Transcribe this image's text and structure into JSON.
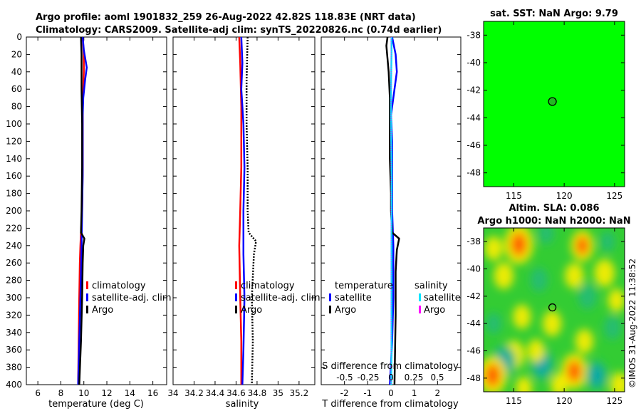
{
  "header": {
    "title_line1": "Argo profile: aoml 1901832_259 26-Aug-2022 42.82S 118.83E (NRT data)",
    "title_line2": "Climatology: CARS2009. Satellite-adj clim: synTS_20220826.nc (0.74d earlier)"
  },
  "watermark": "©IMOS 31-Aug-2022 11:38:52",
  "colors": {
    "climatology": "#ff0000",
    "satellite": "#0000ff",
    "argo": "#000000",
    "salinity_satellite": "#00e5ff",
    "salinity_argo": "#ff00ff",
    "sst_marker": "#22bb22",
    "sst_bg": "#00ff00"
  },
  "chart_data": [
    {
      "id": "temperature",
      "type": "line",
      "xlabel": "temperature (deg C)",
      "xlim": [
        5,
        17.2
      ],
      "xticks": [
        6,
        8,
        10,
        12,
        14,
        16
      ],
      "ylim": [
        0,
        400
      ],
      "yticks": [
        0,
        20,
        40,
        60,
        80,
        100,
        120,
        140,
        160,
        180,
        200,
        220,
        240,
        260,
        280,
        300,
        320,
        340,
        360,
        380,
        400
      ],
      "legend": [
        "climatology",
        "satellite-adj. clim",
        "Argo"
      ],
      "series": [
        {
          "name": "climatology",
          "color": "#ff0000",
          "depth": [
            0,
            20,
            40,
            60,
            80,
            100,
            150,
            200,
            225,
            240,
            260,
            300,
            350,
            400
          ],
          "values": [
            9.9,
            10.0,
            10.0,
            9.95,
            9.9,
            9.9,
            9.9,
            9.85,
            9.75,
            9.7,
            9.65,
            9.6,
            9.55,
            9.5
          ]
        },
        {
          "name": "satellite-adj. clim",
          "color": "#0000ff",
          "depth": [
            0,
            15,
            35,
            50,
            70,
            90,
            120,
            160,
            200,
            240,
            300,
            350,
            400
          ],
          "values": [
            9.9,
            10.0,
            10.25,
            10.1,
            9.95,
            9.9,
            9.9,
            9.9,
            9.85,
            9.8,
            9.7,
            9.6,
            9.5
          ]
        },
        {
          "name": "Argo",
          "color": "#000000",
          "depth": [
            0,
            20,
            60,
            100,
            150,
            200,
            225,
            232,
            240,
            260,
            300,
            350,
            400
          ],
          "values": [
            9.75,
            9.8,
            9.8,
            9.85,
            9.85,
            9.8,
            9.75,
            10.05,
            9.95,
            9.9,
            9.85,
            9.75,
            9.6
          ]
        }
      ]
    },
    {
      "id": "salinity",
      "type": "line",
      "xlabel": "salinity",
      "xlim": [
        34,
        35.35
      ],
      "xticks": [
        34,
        34.2,
        34.4,
        34.6,
        34.8,
        35,
        35.2
      ],
      "ylim": [
        0,
        400
      ],
      "legend": [
        "climatology",
        "satellite-adj. clim",
        "Argo"
      ],
      "series": [
        {
          "name": "climatology",
          "color": "#ff0000",
          "depth": [
            0,
            30,
            80,
            150,
            200,
            240,
            300,
            350,
            400
          ],
          "values": [
            34.63,
            34.64,
            34.65,
            34.65,
            34.64,
            34.63,
            34.64,
            34.65,
            34.65
          ]
        },
        {
          "name": "satellite-adj. clim",
          "color": "#0000ff",
          "depth": [
            0,
            30,
            60,
            100,
            150,
            200,
            250,
            300,
            360,
            400
          ],
          "values": [
            34.65,
            34.66,
            34.65,
            34.67,
            34.68,
            34.67,
            34.67,
            34.68,
            34.67,
            34.66
          ]
        },
        {
          "name": "Argo",
          "color": "#000000",
          "depth": [
            0,
            50,
            100,
            150,
            200,
            225,
            235,
            250,
            300,
            350,
            400
          ],
          "values": [
            34.71,
            34.7,
            34.7,
            34.71,
            34.71,
            34.72,
            34.79,
            34.77,
            34.75,
            34.76,
            34.75
          ]
        }
      ]
    },
    {
      "id": "difference",
      "type": "line",
      "xlabel": "T difference from climatology",
      "xlabel_top": "S difference from climatology",
      "xlim": [
        -3,
        3
      ],
      "xticks": [
        -2,
        -1,
        0,
        1,
        2
      ],
      "xticks_top": [
        "-0.5",
        "-0.25",
        "0",
        "0.25",
        "0.5"
      ],
      "ylim": [
        0,
        400
      ],
      "legend_left_header": "temperature",
      "legend_left": [
        "satellite",
        "Argo"
      ],
      "legend_right_header": "salinity",
      "legend_right": [
        "satellite",
        "Argo"
      ],
      "series": [
        {
          "name": "T satellite",
          "color": "#0000ff",
          "depth": [
            0,
            20,
            40,
            60,
            90,
            120,
            160,
            200,
            240,
            300,
            350,
            400
          ],
          "values": [
            0.05,
            0.2,
            0.25,
            0.15,
            0.0,
            0.05,
            0.05,
            0.05,
            0.1,
            0.1,
            0.05,
            -0.05
          ]
        },
        {
          "name": "T Argo",
          "color": "#000000",
          "depth": [
            0,
            10,
            40,
            70,
            100,
            140,
            180,
            200,
            225,
            232,
            245,
            270,
            320,
            400
          ],
          "values": [
            -0.15,
            -0.2,
            -0.1,
            -0.05,
            -0.05,
            -0.05,
            0.0,
            0.0,
            0.05,
            0.35,
            0.25,
            0.2,
            0.2,
            0.15
          ]
        },
        {
          "name": "S satellite",
          "color": "#00e5ff",
          "depth": [
            0,
            20,
            40,
            60,
            90,
            120,
            160,
            200,
            240,
            300,
            350,
            400
          ],
          "values": [
            0.02,
            0.02,
            0.01,
            0.0,
            0.0,
            0.01,
            0.02,
            0.02,
            0.02,
            0.02,
            0.02,
            0.01
          ]
        },
        {
          "name": "S Argo",
          "color": "#ff00ff",
          "depth": [
            0,
            400
          ],
          "values": [
            0.0,
            0.0
          ]
        }
      ]
    },
    {
      "id": "sst_map",
      "type": "scatter",
      "title": "sat. SST: NaN Argo: 9.79",
      "xlim": [
        112,
        126
      ],
      "xticks": [
        115,
        120,
        125
      ],
      "ylim": [
        -49,
        -37
      ],
      "yticks": [
        -38,
        -40,
        -42,
        -44,
        -46,
        -48
      ],
      "point": {
        "lon": 118.83,
        "lat": -42.82
      }
    },
    {
      "id": "sla_map",
      "type": "heatmap",
      "title_line1": "Altim. SLA: 0.086",
      "title_line2": "Argo h1000: NaN h2000: NaN",
      "xlim": [
        112,
        126
      ],
      "xticks": [
        115,
        120,
        125
      ],
      "ylim": [
        -49,
        -37
      ],
      "yticks": [
        -38,
        -40,
        -42,
        -44,
        -46,
        -48
      ],
      "point": {
        "lon": 118.83,
        "lat": -42.82
      },
      "blobs": [
        {
          "lon": 115.5,
          "lat": -38.2,
          "v": 1.0
        },
        {
          "lon": 121.8,
          "lat": -38.3,
          "v": 0.65
        },
        {
          "lon": 113.0,
          "lat": -38.5,
          "v": 0.35
        },
        {
          "lon": 118.2,
          "lat": -37.4,
          "v": -0.3
        },
        {
          "lon": 124.3,
          "lat": -38.0,
          "v": -0.25
        },
        {
          "lon": 114.0,
          "lat": -40.5,
          "v": 0.45
        },
        {
          "lon": 117.5,
          "lat": -40.8,
          "v": -0.45
        },
        {
          "lon": 121.0,
          "lat": -40.5,
          "v": 0.4
        },
        {
          "lon": 124.0,
          "lat": -40.3,
          "v": 0.5
        },
        {
          "lon": 122.3,
          "lat": -42.0,
          "v": -0.55
        },
        {
          "lon": 115.8,
          "lat": -43.5,
          "v": 0.35
        },
        {
          "lon": 118.8,
          "lat": -44.0,
          "v": 0.4
        },
        {
          "lon": 113.0,
          "lat": -44.0,
          "v": -0.3
        },
        {
          "lon": 124.8,
          "lat": -44.3,
          "v": -0.45
        },
        {
          "lon": 125.2,
          "lat": -42.3,
          "v": 0.3
        },
        {
          "lon": 122.0,
          "lat": -45.3,
          "v": 0.35
        },
        {
          "lon": 115.0,
          "lat": -46.3,
          "v": 0.55
        },
        {
          "lon": 114.0,
          "lat": -46.8,
          "v": -1.0
        },
        {
          "lon": 117.8,
          "lat": -47.0,
          "v": -0.9
        },
        {
          "lon": 117.2,
          "lat": -46.0,
          "v": 0.3
        },
        {
          "lon": 121.0,
          "lat": -47.5,
          "v": 0.85
        },
        {
          "lon": 123.2,
          "lat": -47.8,
          "v": -0.8
        },
        {
          "lon": 112.9,
          "lat": -47.8,
          "v": 0.95
        },
        {
          "lon": 125.5,
          "lat": -48.5,
          "v": 0.4
        },
        {
          "lon": 119.5,
          "lat": -48.5,
          "v": 0.3
        },
        {
          "lon": 116.0,
          "lat": -48.7,
          "v": 0.25
        }
      ]
    }
  ]
}
